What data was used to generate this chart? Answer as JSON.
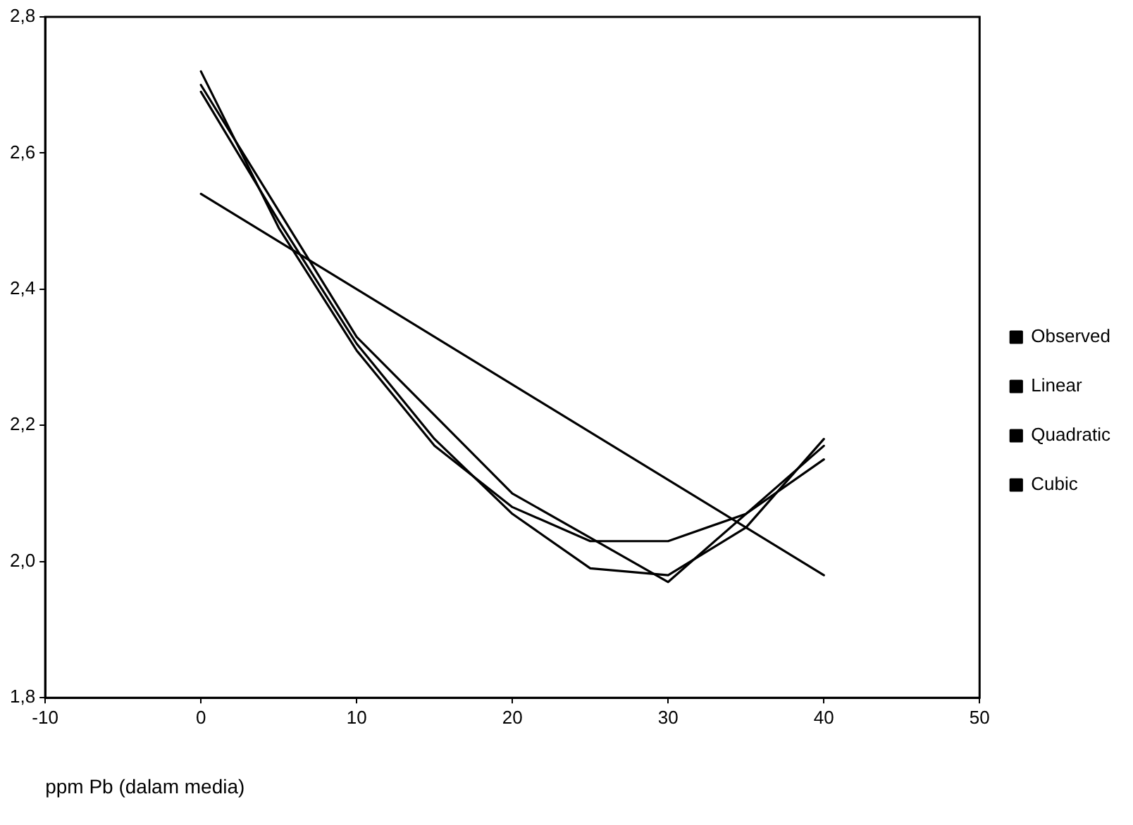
{
  "chart_data": {
    "type": "line",
    "xlabel": "ppm Pb (dalam media)",
    "xlim": [
      -10,
      50
    ],
    "xticks": [
      -10,
      0,
      10,
      20,
      30,
      40,
      50
    ],
    "ylim": [
      1.8,
      2.8
    ],
    "yticks": [
      {
        "value": 1.8,
        "label": "1,8"
      },
      {
        "value": 2.0,
        "label": "2,0"
      },
      {
        "value": 2.2,
        "label": "2,2"
      },
      {
        "value": 2.4,
        "label": "2,4"
      },
      {
        "value": 2.6,
        "label": "2,6"
      },
      {
        "value": 2.8,
        "label": "2,8"
      }
    ],
    "grid": false,
    "legend": "right",
    "marker": "none",
    "line_style": "solid",
    "series": [
      {
        "name": "Observed",
        "color": "#000000",
        "x": [
          0,
          10,
          20,
          30,
          40
        ],
        "values": [
          2.7,
          2.33,
          2.1,
          1.97,
          2.17
        ]
      },
      {
        "name": "Linear",
        "color": "#000000",
        "x": [
          0,
          40
        ],
        "values": [
          2.54,
          1.98
        ]
      },
      {
        "name": "Quadratic",
        "color": "#000000",
        "x": [
          0,
          5,
          10,
          15,
          20,
          25,
          30,
          35,
          40
        ],
        "values": [
          2.72,
          2.49,
          2.31,
          2.17,
          2.08,
          2.03,
          2.03,
          2.07,
          2.15
        ]
      },
      {
        "name": "Cubic",
        "color": "#000000",
        "x": [
          0,
          5,
          10,
          15,
          20,
          25,
          30,
          35,
          40
        ],
        "values": [
          2.69,
          2.5,
          2.32,
          2.18,
          2.07,
          1.99,
          1.98,
          2.05,
          2.18
        ]
      }
    ]
  }
}
